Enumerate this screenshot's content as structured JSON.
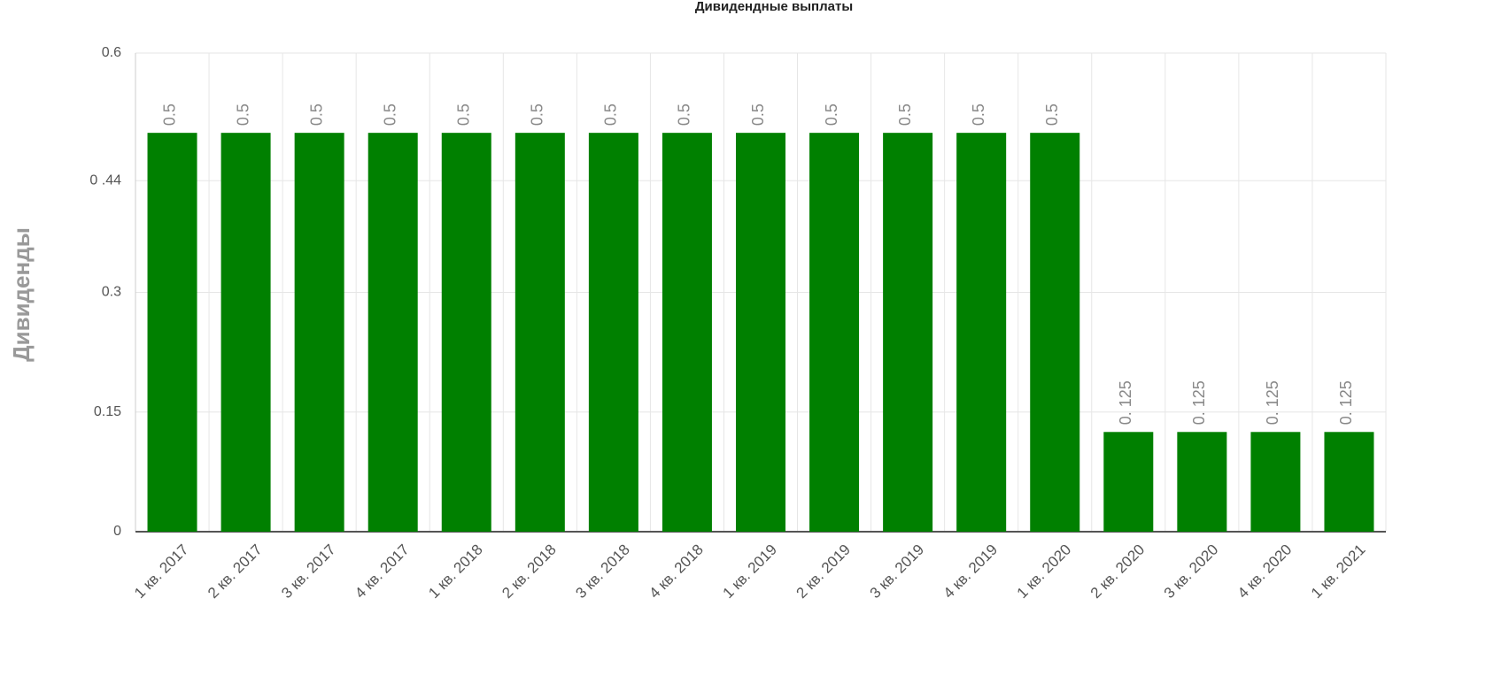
{
  "chart_data": {
    "type": "bar",
    "title": "Дивидендные выплаты",
    "y_label": "Дивиденды",
    "categories": [
      "1 кв. 2017",
      "2 кв. 2017",
      "3 кв. 2017",
      "4 кв. 2017",
      "1 кв. 2018",
      "2 кв. 2018",
      "3 кв. 2018",
      "4 кв. 2018",
      "1 кв. 2019",
      "2 кв. 2019",
      "3 кв. 2019",
      "4 кв. 2019",
      "1 кв. 2020",
      "2 кв. 2020",
      "3 кв. 2020",
      "4 кв. 2020",
      "1 кв. 2021"
    ],
    "values": [
      0.5,
      0.5,
      0.5,
      0.5,
      0.5,
      0.5,
      0.5,
      0.5,
      0.5,
      0.5,
      0.5,
      0.5,
      0.5,
      0.125,
      0.125,
      0.125,
      0.125
    ],
    "value_labels": [
      "0.5",
      "0.5",
      "0.5",
      "0.5",
      "0.5",
      "0.5",
      "0.5",
      "0.5",
      "0.5",
      "0.5",
      "0.5",
      "0.5",
      "0.5",
      "0. 125",
      "0. 125",
      "0. 125",
      "0. 125"
    ],
    "color": "#008000",
    "ylim": [
      0,
      0.6
    ],
    "yticks": [
      0,
      0.15,
      0.3,
      {
        "value": 0.44,
        "label": "0 .44"
      },
      0.6
    ],
    "grid": true
  }
}
